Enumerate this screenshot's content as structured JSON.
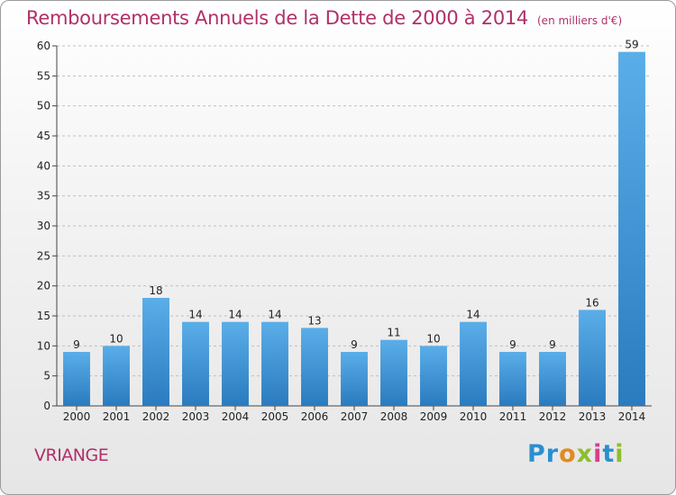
{
  "header": {
    "title": "Remboursements Annuels de la Dette de 2000 à 2014",
    "unit": "(en milliers d'€)"
  },
  "footer": {
    "commune": "VRIANGE",
    "logo_parts": [
      "Pr",
      "o",
      "x",
      "i",
      "t",
      "i"
    ]
  },
  "colors": {
    "title": "#b0306a",
    "bar_light": "#5aaee8",
    "bar_dark": "#2a7bbf",
    "grid": "#bfbfbf"
  },
  "chart_data": {
    "type": "bar",
    "title": "Remboursements Annuels de la Dette de 2000 à 2014",
    "xlabel": "",
    "ylabel": "",
    "ylim": [
      0,
      60
    ],
    "yticks": [
      0,
      5,
      10,
      15,
      20,
      25,
      30,
      35,
      40,
      45,
      50,
      55,
      60
    ],
    "grid": "horizontal dashed",
    "categories": [
      "2000",
      "2001",
      "2002",
      "2003",
      "2004",
      "2005",
      "2006",
      "2007",
      "2008",
      "2009",
      "2010",
      "2011",
      "2012",
      "2013",
      "2014"
    ],
    "values": [
      9,
      10,
      18,
      14,
      14,
      14,
      13,
      9,
      11,
      10,
      14,
      9,
      9,
      16,
      59
    ]
  }
}
